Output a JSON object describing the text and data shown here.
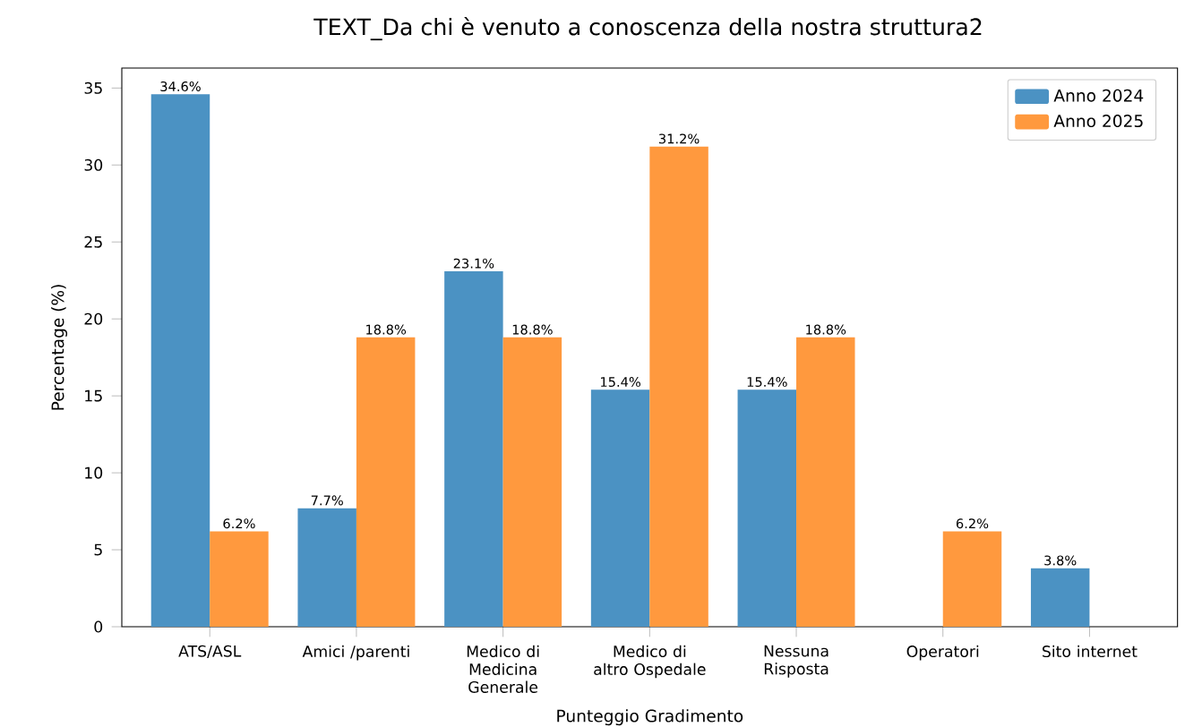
{
  "chart_data": {
    "type": "bar",
    "title": "TEXT_Da chi è venuto a conoscenza della nostra struttura2",
    "xlabel": "Punteggio Gradimento",
    "ylabel": "Percentage (%)",
    "categories": [
      "ATS/ASL",
      "Amici /parenti",
      "Medico di Medicina Generale",
      "Medico di altro Ospedale",
      "Nessuna Risposta",
      "Operatori",
      "Sito internet"
    ],
    "series": [
      {
        "name": "Anno 2024",
        "color": "#4b92c3",
        "values": [
          34.6,
          7.7,
          23.1,
          15.4,
          15.4,
          null,
          3.8
        ],
        "value_labels": [
          "34.6%",
          "7.7%",
          "23.1%",
          "15.4%",
          "15.4%",
          null,
          "3.8%"
        ]
      },
      {
        "name": "Anno 2025",
        "color": "#ff993e",
        "values": [
          6.2,
          18.8,
          18.8,
          31.2,
          18.8,
          6.2,
          null
        ],
        "value_labels": [
          "6.2%",
          "18.8%",
          "18.8%",
          "31.2%",
          "18.8%",
          "6.2%",
          null
        ]
      }
    ],
    "ylim": [
      0,
      36.3
    ],
    "yticks": [
      0,
      5,
      10,
      15,
      20,
      25,
      30,
      35
    ],
    "legend": "top right",
    "grid": false
  }
}
